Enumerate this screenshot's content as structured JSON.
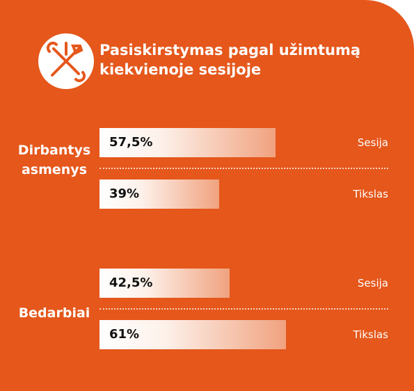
{
  "chart_data": {
    "type": "bar",
    "title": "Pasiskirstymas pagal užimtumą kiekvienoje sesijoje",
    "categories": [
      "Dirbantys asmenys",
      "Bedarbiai"
    ],
    "xlim": [
      0,
      100
    ],
    "series": [
      {
        "name": "Sesija",
        "values": [
          57.5,
          42.5
        ],
        "value_labels": [
          "57,5%",
          "42,5%"
        ]
      },
      {
        "name": "Tikslas",
        "values": [
          39,
          61
        ],
        "value_labels": [
          "39%",
          "61%"
        ]
      }
    ]
  }
}
